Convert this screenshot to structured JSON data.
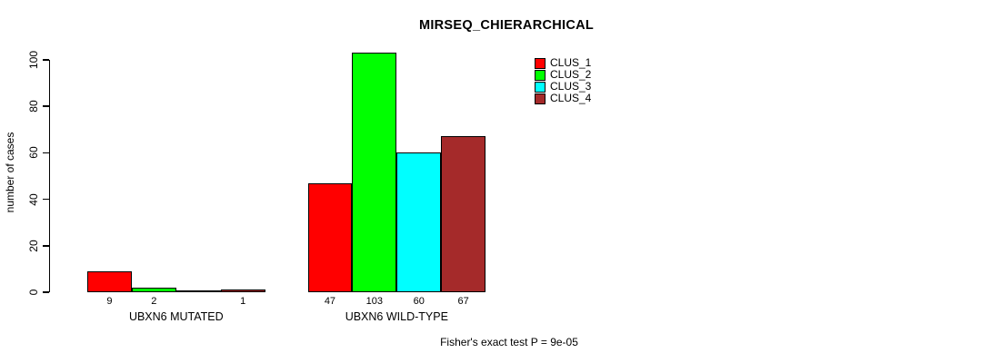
{
  "chart_data": {
    "type": "bar",
    "title": "MIRSEQ_CHIERARCHICAL",
    "ylabel": "number of cases",
    "xlabel": "",
    "ylim": [
      0,
      100
    ],
    "yticks": [
      0,
      20,
      40,
      60,
      80,
      100
    ],
    "grid": false,
    "legend_position": "top-right",
    "background": "#FFFFFF",
    "categories": [
      "UBXN6 MUTATED",
      "UBXN6 WILD-TYPE"
    ],
    "series": [
      {
        "name": "CLUS_1",
        "color": "#FF0000",
        "values": [
          9,
          47
        ]
      },
      {
        "name": "CLUS_2",
        "color": "#00FF00",
        "values": [
          2,
          103
        ]
      },
      {
        "name": "CLUS_3",
        "color": "#00FFFF",
        "values": [
          0,
          60
        ]
      },
      {
        "name": "CLUS_4",
        "color": "#A52A2A",
        "values": [
          1,
          67
        ]
      }
    ],
    "bar_value_labels": [
      [
        "9",
        "2",
        "",
        "1"
      ],
      [
        "47",
        "103",
        "60",
        "67"
      ]
    ],
    "annotation": "Fisher's exact test P = 9e-05"
  }
}
